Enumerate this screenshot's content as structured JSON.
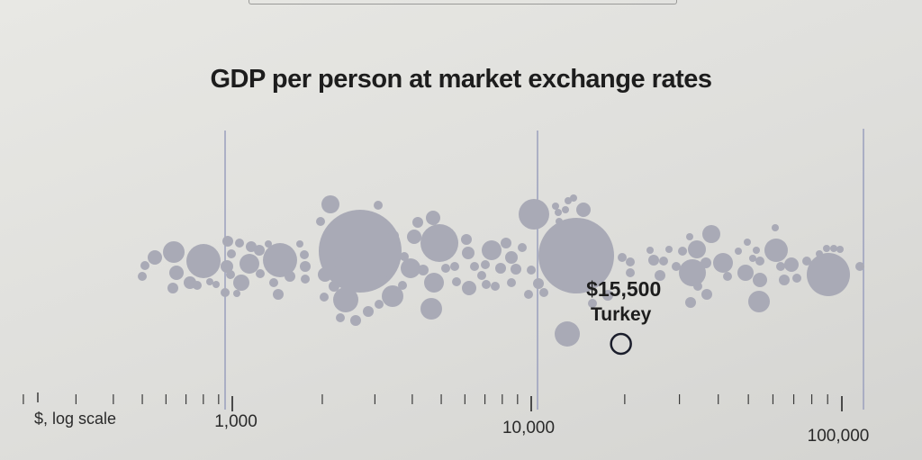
{
  "page": {
    "title": "GDP per person at market exchange rates"
  },
  "chart_data": {
    "type": "scatter",
    "subtype": "beeswarm",
    "title": "GDP per person at market exchange rates",
    "x_scale": "log",
    "xlabel": "$, log scale",
    "xlim": [
      190,
      115000
    ],
    "x_tick_labels": [
      "1,000",
      "10,000",
      "100,000"
    ],
    "x_tick_label_values": [
      1000,
      10000,
      100000
    ],
    "gridlines_at": [
      1000,
      10000,
      100000
    ],
    "bubble_color": "#a9aab6",
    "gridline_color": "#9ea3bf",
    "highlight_color": "#1b1e2c",
    "annotation": {
      "value_label": "$15,500",
      "country": "Turkey",
      "x": 15500
    }
  }
}
